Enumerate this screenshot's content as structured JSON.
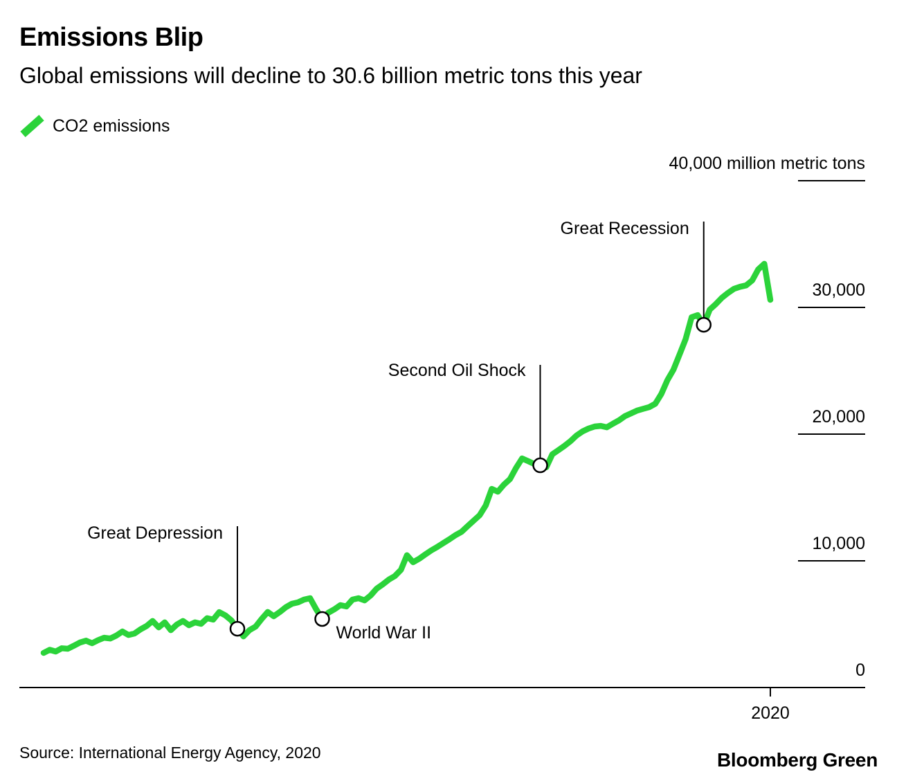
{
  "header": {
    "title": "Emissions Blip",
    "subtitle": "Global emissions will decline to 30.6 billion metric tons this year"
  },
  "legend": {
    "label": "CO2 emissions"
  },
  "footer": {
    "source": "Source: International Energy Agency, 2020",
    "brand": "Bloomberg Green"
  },
  "colors": {
    "line": "#2bd33a",
    "text": "#000000",
    "marker_fill": "#ffffff",
    "marker_stroke": "#000000"
  },
  "chart_data": {
    "type": "line",
    "title": "Emissions Blip",
    "subtitle": "Global emissions will decline to 30.6 billion metric tons this year",
    "unit": "million metric tons",
    "legend_position": "top-left",
    "grid": false,
    "x_axis": {
      "range": [
        1900,
        2020
      ],
      "ticks": [
        {
          "label": "2020",
          "value": 2020
        }
      ]
    },
    "y_axis": {
      "position": "right",
      "range": [
        0,
        40000
      ],
      "ticks": [
        {
          "label": "40,000 million metric tons",
          "value": 40000,
          "tick_line": true
        },
        {
          "label": "30,000",
          "value": 30000,
          "tick_line": true
        },
        {
          "label": "20,000",
          "value": 20000,
          "tick_line": true
        },
        {
          "label": "10,000",
          "value": 10000,
          "tick_line": true
        },
        {
          "label": "0",
          "value": 0,
          "tick_line": false
        }
      ]
    },
    "series": [
      {
        "name": "CO2 emissions",
        "color": "#2bd33a",
        "points": [
          [
            1900,
            2730
          ],
          [
            1901,
            2980
          ],
          [
            1902,
            2840
          ],
          [
            1903,
            3100
          ],
          [
            1904,
            3060
          ],
          [
            1905,
            3300
          ],
          [
            1906,
            3550
          ],
          [
            1907,
            3700
          ],
          [
            1908,
            3500
          ],
          [
            1909,
            3740
          ],
          [
            1910,
            3930
          ],
          [
            1911,
            3870
          ],
          [
            1912,
            4100
          ],
          [
            1913,
            4420
          ],
          [
            1914,
            4150
          ],
          [
            1915,
            4260
          ],
          [
            1916,
            4590
          ],
          [
            1917,
            4860
          ],
          [
            1918,
            5250
          ],
          [
            1919,
            4750
          ],
          [
            1920,
            5140
          ],
          [
            1921,
            4530
          ],
          [
            1922,
            4970
          ],
          [
            1923,
            5250
          ],
          [
            1924,
            4920
          ],
          [
            1925,
            5140
          ],
          [
            1926,
            5030
          ],
          [
            1927,
            5470
          ],
          [
            1928,
            5360
          ],
          [
            1929,
            5950
          ],
          [
            1930,
            5700
          ],
          [
            1931,
            5300
          ],
          [
            1932,
            4640
          ],
          [
            1933,
            4040
          ],
          [
            1934,
            4530
          ],
          [
            1935,
            4810
          ],
          [
            1936,
            5410
          ],
          [
            1937,
            5960
          ],
          [
            1938,
            5630
          ],
          [
            1939,
            5960
          ],
          [
            1940,
            6340
          ],
          [
            1941,
            6610
          ],
          [
            1942,
            6720
          ],
          [
            1943,
            6940
          ],
          [
            1944,
            7050
          ],
          [
            1945,
            6180
          ],
          [
            1946,
            5410
          ],
          [
            1947,
            5900
          ],
          [
            1948,
            6170
          ],
          [
            1949,
            6500
          ],
          [
            1950,
            6400
          ],
          [
            1951,
            6940
          ],
          [
            1952,
            7050
          ],
          [
            1953,
            6880
          ],
          [
            1954,
            7270
          ],
          [
            1955,
            7810
          ],
          [
            1956,
            8140
          ],
          [
            1957,
            8520
          ],
          [
            1958,
            8800
          ],
          [
            1959,
            9290
          ],
          [
            1960,
            10440
          ],
          [
            1961,
            9890
          ],
          [
            1962,
            10160
          ],
          [
            1963,
            10500
          ],
          [
            1964,
            10820
          ],
          [
            1965,
            11100
          ],
          [
            1966,
            11400
          ],
          [
            1967,
            11700
          ],
          [
            1968,
            12020
          ],
          [
            1969,
            12290
          ],
          [
            1970,
            12730
          ],
          [
            1971,
            13170
          ],
          [
            1972,
            13600
          ],
          [
            1973,
            14370
          ],
          [
            1974,
            15680
          ],
          [
            1975,
            15460
          ],
          [
            1976,
            16010
          ],
          [
            1977,
            16450
          ],
          [
            1978,
            17320
          ],
          [
            1979,
            18080
          ],
          [
            1980,
            17870
          ],
          [
            1981,
            17650
          ],
          [
            1982,
            17540
          ],
          [
            1983,
            17380
          ],
          [
            1984,
            18410
          ],
          [
            1985,
            18740
          ],
          [
            1986,
            19070
          ],
          [
            1987,
            19450
          ],
          [
            1988,
            19890
          ],
          [
            1989,
            20220
          ],
          [
            1990,
            20440
          ],
          [
            1991,
            20600
          ],
          [
            1992,
            20650
          ],
          [
            1993,
            20540
          ],
          [
            1994,
            20820
          ],
          [
            1995,
            21090
          ],
          [
            1996,
            21420
          ],
          [
            1997,
            21640
          ],
          [
            1998,
            21860
          ],
          [
            1999,
            22000
          ],
          [
            2000,
            22130
          ],
          [
            2001,
            22400
          ],
          [
            2002,
            23170
          ],
          [
            2003,
            24260
          ],
          [
            2004,
            25080
          ],
          [
            2005,
            26280
          ],
          [
            2006,
            27480
          ],
          [
            2007,
            29230
          ],
          [
            2008,
            29390
          ],
          [
            2009,
            28630
          ],
          [
            2010,
            29830
          ],
          [
            2011,
            30270
          ],
          [
            2012,
            30760
          ],
          [
            2013,
            31140
          ],
          [
            2014,
            31470
          ],
          [
            2015,
            31630
          ],
          [
            2016,
            31740
          ],
          [
            2017,
            32130
          ],
          [
            2018,
            33000
          ],
          [
            2019,
            33440
          ],
          [
            2020,
            30600
          ]
        ]
      }
    ],
    "annotations": [
      {
        "id": "great-depression",
        "label": "Great Depression",
        "year": 1932,
        "value": 4640
      },
      {
        "id": "world-war-2",
        "label": "World War II",
        "year": 1946,
        "value": 5410
      },
      {
        "id": "second-oil-shock",
        "label": "Second Oil Shock",
        "year": 1982,
        "value": 17540
      },
      {
        "id": "great-recession",
        "label": "Great Recession",
        "year": 2009,
        "value": 28630
      }
    ]
  }
}
